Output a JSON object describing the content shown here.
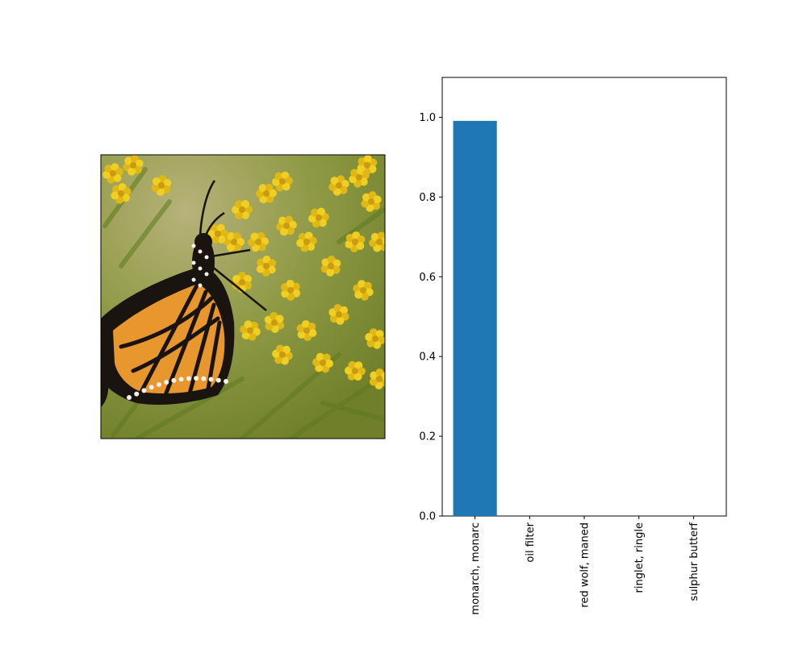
{
  "image_panel": {
    "subject": "monarch butterfly on yellow flowers",
    "colors": {
      "background_green": "#8a9a3a",
      "flower_yellow": "#e8c51a",
      "wing_orange": "#e8962e",
      "wing_black": "#1a1410",
      "spot_white": "#f4f1ea"
    }
  },
  "chart_data": {
    "type": "bar",
    "categories": [
      "monarch, monarc",
      "oil filter",
      "red wolf, maned",
      "ringlet, ringle",
      "sulphur butterf"
    ],
    "values": [
      0.991,
      0.0,
      0.0,
      0.0,
      0.0
    ],
    "title": "",
    "xlabel": "",
    "ylabel": "",
    "ylim": [
      0,
      1.1
    ],
    "yticks": [
      0.0,
      0.2,
      0.4,
      0.6,
      0.8,
      1.0
    ],
    "ytick_labels": [
      "0.0",
      "0.2",
      "0.4",
      "0.6",
      "0.8",
      "1.0"
    ],
    "grid": false,
    "bar_color": "#1f77b4"
  }
}
